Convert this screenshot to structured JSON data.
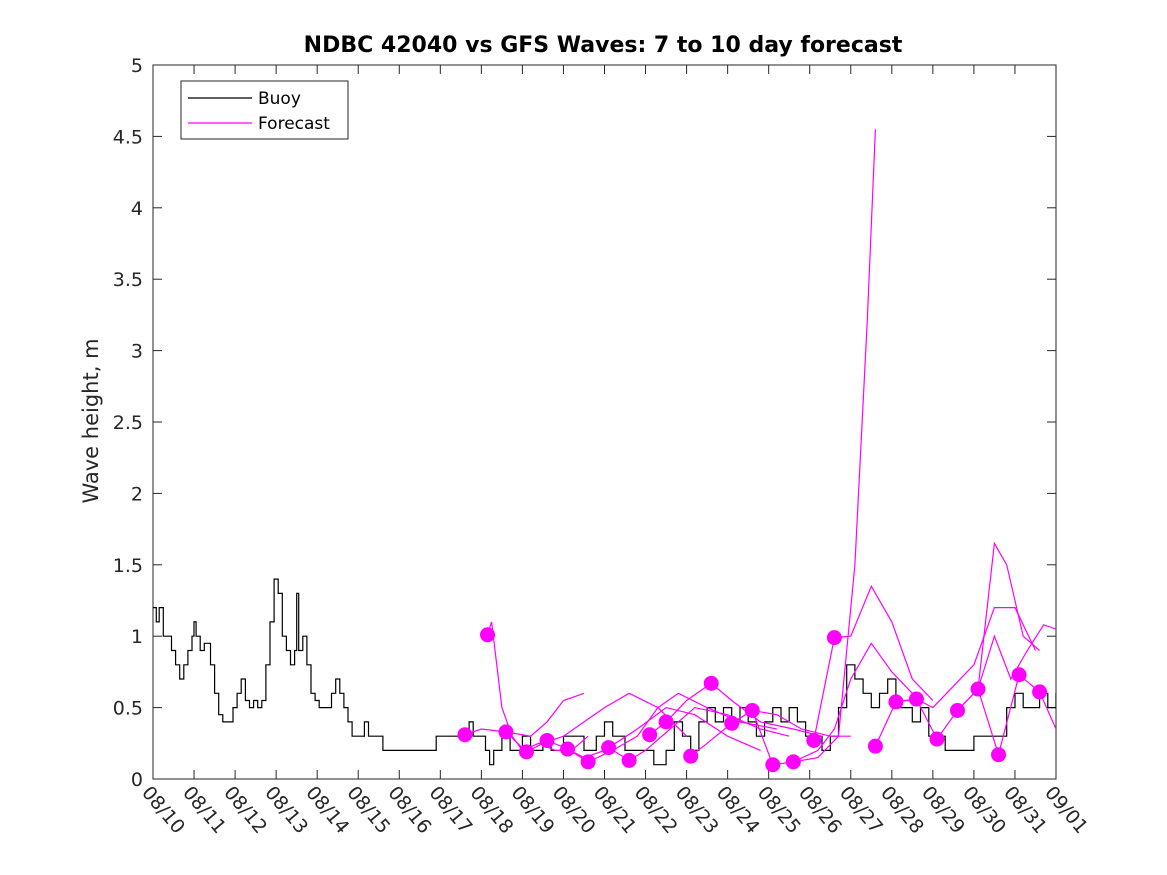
{
  "chart_data": {
    "type": "line",
    "title": "NDBC 42040 vs GFS Waves: 7 to 10 day forecast",
    "xlabel": "",
    "ylabel": "Wave height, m",
    "x_day_range": [
      0,
      22
    ],
    "ylim": [
      0,
      5
    ],
    "x_tick_labels": [
      "08/10",
      "08/11",
      "08/12",
      "08/13",
      "08/14",
      "08/15",
      "08/16",
      "08/17",
      "08/18",
      "08/19",
      "08/20",
      "08/21",
      "08/22",
      "08/23",
      "08/24",
      "08/25",
      "08/26",
      "08/27",
      "08/28",
      "08/29",
      "08/30",
      "08/31",
      "09/01"
    ],
    "y_ticks": [
      0,
      0.5,
      1,
      1.5,
      2,
      2.5,
      3,
      3.5,
      4,
      4.5,
      5
    ],
    "y_tick_labels": [
      "0",
      "0.5",
      "1",
      "1.5",
      "2",
      "2.5",
      "3",
      "3.5",
      "4",
      "4.5",
      "5"
    ],
    "legend": {
      "location": "top-left",
      "entries": [
        {
          "label": "Buoy",
          "color": "#000000"
        },
        {
          "label": "Forecast",
          "color": "#ff00ff"
        }
      ]
    },
    "series": [
      {
        "name": "Buoy",
        "color": "#000000",
        "points": [
          [
            0,
            1.2
          ],
          [
            0.08,
            1.1
          ],
          [
            0.15,
            1.2
          ],
          [
            0.25,
            1.0
          ],
          [
            0.35,
            1.0
          ],
          [
            0.45,
            0.9
          ],
          [
            0.55,
            0.8
          ],
          [
            0.65,
            0.7
          ],
          [
            0.75,
            0.8
          ],
          [
            0.85,
            0.9
          ],
          [
            0.95,
            1.0
          ],
          [
            1.0,
            1.1
          ],
          [
            1.05,
            1.0
          ],
          [
            1.15,
            0.9
          ],
          [
            1.25,
            0.95
          ],
          [
            1.4,
            0.8
          ],
          [
            1.5,
            0.6
          ],
          [
            1.6,
            0.45
          ],
          [
            1.7,
            0.4
          ],
          [
            1.85,
            0.4
          ],
          [
            1.95,
            0.5
          ],
          [
            2.05,
            0.6
          ],
          [
            2.15,
            0.7
          ],
          [
            2.25,
            0.55
          ],
          [
            2.35,
            0.5
          ],
          [
            2.45,
            0.55
          ],
          [
            2.55,
            0.5
          ],
          [
            2.65,
            0.55
          ],
          [
            2.75,
            0.8
          ],
          [
            2.85,
            1.1
          ],
          [
            2.95,
            1.4
          ],
          [
            3.05,
            1.3
          ],
          [
            3.15,
            1.0
          ],
          [
            3.25,
            0.9
          ],
          [
            3.35,
            0.8
          ],
          [
            3.45,
            0.9
          ],
          [
            3.5,
            1.3
          ],
          [
            3.55,
            0.9
          ],
          [
            3.65,
            1.0
          ],
          [
            3.75,
            0.8
          ],
          [
            3.85,
            0.6
          ],
          [
            3.95,
            0.55
          ],
          [
            4.05,
            0.5
          ],
          [
            4.25,
            0.5
          ],
          [
            4.35,
            0.6
          ],
          [
            4.45,
            0.7
          ],
          [
            4.55,
            0.6
          ],
          [
            4.65,
            0.5
          ],
          [
            4.75,
            0.4
          ],
          [
            4.85,
            0.3
          ],
          [
            5.0,
            0.3
          ],
          [
            5.15,
            0.4
          ],
          [
            5.25,
            0.3
          ],
          [
            5.5,
            0.3
          ],
          [
            5.6,
            0.2
          ],
          [
            6.0,
            0.2
          ],
          [
            6.5,
            0.2
          ],
          [
            6.9,
            0.3
          ],
          [
            7.3,
            0.3
          ],
          [
            7.6,
            0.3
          ],
          [
            7.7,
            0.4
          ],
          [
            7.8,
            0.3
          ],
          [
            8.0,
            0.3
          ],
          [
            8.1,
            0.2
          ],
          [
            8.2,
            0.1
          ],
          [
            8.3,
            0.2
          ],
          [
            8.5,
            0.3
          ],
          [
            8.7,
            0.2
          ],
          [
            9.0,
            0.3
          ],
          [
            9.2,
            0.2
          ],
          [
            9.5,
            0.3
          ],
          [
            9.7,
            0.2
          ],
          [
            10.0,
            0.3
          ],
          [
            10.3,
            0.3
          ],
          [
            10.5,
            0.2
          ],
          [
            10.8,
            0.3
          ],
          [
            11.0,
            0.4
          ],
          [
            11.2,
            0.3
          ],
          [
            11.5,
            0.2
          ],
          [
            11.8,
            0.2
          ],
          [
            12.0,
            0.2
          ],
          [
            12.2,
            0.1
          ],
          [
            12.5,
            0.2
          ],
          [
            12.7,
            0.4
          ],
          [
            12.9,
            0.3
          ],
          [
            13.1,
            0.2
          ],
          [
            13.3,
            0.4
          ],
          [
            13.5,
            0.5
          ],
          [
            13.7,
            0.4
          ],
          [
            13.9,
            0.5
          ],
          [
            14.1,
            0.4
          ],
          [
            14.3,
            0.5
          ],
          [
            14.5,
            0.4
          ],
          [
            14.7,
            0.3
          ],
          [
            14.9,
            0.4
          ],
          [
            15.1,
            0.5
          ],
          [
            15.3,
            0.4
          ],
          [
            15.5,
            0.5
          ],
          [
            15.7,
            0.4
          ],
          [
            15.9,
            0.3
          ],
          [
            16.1,
            0.3
          ],
          [
            16.3,
            0.2
          ],
          [
            16.5,
            0.3
          ],
          [
            16.7,
            0.5
          ],
          [
            16.9,
            0.8
          ],
          [
            17.1,
            0.7
          ],
          [
            17.3,
            0.6
          ],
          [
            17.5,
            0.5
          ],
          [
            17.7,
            0.6
          ],
          [
            17.9,
            0.7
          ],
          [
            18.1,
            0.5
          ],
          [
            18.3,
            0.5
          ],
          [
            18.5,
            0.4
          ],
          [
            18.7,
            0.5
          ],
          [
            18.9,
            0.3
          ],
          [
            19.1,
            0.3
          ],
          [
            19.3,
            0.2
          ],
          [
            19.5,
            0.2
          ],
          [
            19.8,
            0.2
          ],
          [
            20.0,
            0.3
          ],
          [
            20.2,
            0.3
          ],
          [
            20.4,
            0.3
          ],
          [
            20.6,
            0.3
          ],
          [
            20.8,
            0.5
          ],
          [
            21.0,
            0.6
          ],
          [
            21.2,
            0.5
          ],
          [
            21.4,
            0.5
          ],
          [
            21.6,
            0.6
          ],
          [
            21.8,
            0.5
          ],
          [
            22.0,
            0.6
          ]
        ]
      },
      {
        "name": "Forecast",
        "color": "#ff00ff",
        "runs": [
          [
            [
              8.15,
              1.01
            ],
            [
              8.25,
              1.1
            ],
            [
              8.5,
              0.5
            ],
            [
              8.75,
              0.3
            ],
            [
              9.0,
              0.2
            ],
            [
              9.4,
              0.25
            ],
            [
              9.8,
              0.2
            ],
            [
              10.2,
              0.2
            ],
            [
              10.6,
              0.3
            ]
          ],
          [
            [
              7.6,
              0.31
            ],
            [
              8.0,
              0.35
            ],
            [
              8.6,
              0.33
            ],
            [
              9.2,
              0.3
            ],
            [
              9.6,
              0.4
            ],
            [
              10.0,
              0.55
            ],
            [
              10.5,
              0.6
            ]
          ],
          [
            [
              8.6,
              0.33
            ],
            [
              9.1,
              0.19
            ],
            [
              9.5,
              0.25
            ],
            [
              10.0,
              0.3
            ],
            [
              10.5,
              0.4
            ],
            [
              11.0,
              0.5
            ],
            [
              11.6,
              0.6
            ],
            [
              12.3,
              0.5
            ],
            [
              13.0,
              0.3
            ]
          ],
          [
            [
              9.6,
              0.27
            ],
            [
              10.1,
              0.21
            ],
            [
              10.5,
              0.15
            ],
            [
              11.0,
              0.2
            ],
            [
              11.8,
              0.35
            ],
            [
              12.5,
              0.5
            ],
            [
              13.2,
              0.45
            ],
            [
              14.0,
              0.3
            ],
            [
              14.8,
              0.2
            ]
          ],
          [
            [
              10.1,
              0.21
            ],
            [
              10.6,
              0.12
            ],
            [
              11.2,
              0.2
            ],
            [
              11.8,
              0.3
            ],
            [
              12.3,
              0.5
            ],
            [
              12.8,
              0.6
            ],
            [
              13.5,
              0.5
            ],
            [
              14.3,
              0.4
            ],
            [
              15.2,
              0.35
            ]
          ],
          [
            [
              11.1,
              0.22
            ],
            [
              11.6,
              0.13
            ],
            [
              12.0,
              0.2
            ],
            [
              12.6,
              0.35
            ],
            [
              13.2,
              0.5
            ],
            [
              14.0,
              0.45
            ],
            [
              14.8,
              0.35
            ],
            [
              15.5,
              0.3
            ]
          ],
          [
            [
              12.1,
              0.31
            ],
            [
              12.5,
              0.4
            ],
            [
              13.0,
              0.55
            ],
            [
              13.6,
              0.67
            ],
            [
              14.1,
              0.55
            ],
            [
              14.8,
              0.4
            ],
            [
              15.6,
              0.35
            ],
            [
              16.3,
              0.3
            ]
          ],
          [
            [
              13.1,
              0.16
            ],
            [
              13.5,
              0.25
            ],
            [
              14.1,
              0.39
            ],
            [
              14.6,
              0.48
            ],
            [
              15.2,
              0.45
            ],
            [
              15.8,
              0.35
            ],
            [
              16.5,
              0.3
            ],
            [
              17.0,
              0.3
            ]
          ],
          [
            [
              14.6,
              0.48
            ],
            [
              15.1,
              0.1
            ],
            [
              15.6,
              0.12
            ],
            [
              16.2,
              0.2
            ],
            [
              16.6,
              0.35
            ],
            [
              17.0,
              0.7
            ],
            [
              17.5,
              0.95
            ],
            [
              18.0,
              0.75
            ],
            [
              18.5,
              0.6
            ]
          ],
          [
            [
              16.1,
              0.27
            ],
            [
              16.6,
              0.99
            ],
            [
              17.0,
              1.0
            ],
            [
              17.5,
              1.35
            ],
            [
              18.0,
              1.1
            ],
            [
              18.5,
              0.7
            ],
            [
              19.0,
              0.55
            ]
          ],
          [
            [
              15.6,
              0.12
            ],
            [
              16.2,
              0.15
            ],
            [
              16.7,
              0.3
            ],
            [
              17.1,
              1.5
            ],
            [
              17.4,
              3.2
            ],
            [
              17.6,
              4.55
            ]
          ],
          [
            [
              17.6,
              0.23
            ],
            [
              18.1,
              0.54
            ],
            [
              18.6,
              0.56
            ],
            [
              19.0,
              0.5
            ],
            [
              19.5,
              0.65
            ],
            [
              20.0,
              0.8
            ],
            [
              20.5,
              1.2
            ],
            [
              21.0,
              1.2
            ],
            [
              21.5,
              0.9
            ]
          ],
          [
            [
              18.1,
              0.54
            ],
            [
              18.6,
              0.56
            ],
            [
              19.1,
              0.28
            ],
            [
              19.6,
              0.48
            ],
            [
              20.1,
              0.63
            ],
            [
              20.5,
              1.65
            ],
            [
              20.8,
              1.5
            ],
            [
              21.2,
              1.0
            ],
            [
              21.6,
              0.9
            ]
          ],
          [
            [
              19.6,
              0.48
            ],
            [
              20.1,
              0.63
            ],
            [
              20.5,
              1.0
            ],
            [
              20.9,
              0.7
            ],
            [
              21.3,
              0.9
            ],
            [
              21.7,
              1.08
            ],
            [
              22.0,
              1.05
            ]
          ],
          [
            [
              20.1,
              0.63
            ],
            [
              20.6,
              0.17
            ],
            [
              21.1,
              0.73
            ],
            [
              21.6,
              0.61
            ],
            [
              22.0,
              0.35
            ]
          ]
        ]
      }
    ],
    "forecast_markers": [
      [
        7.6,
        0.31
      ],
      [
        8.15,
        1.01
      ],
      [
        8.6,
        0.33
      ],
      [
        9.1,
        0.19
      ],
      [
        9.6,
        0.27
      ],
      [
        10.1,
        0.21
      ],
      [
        10.6,
        0.12
      ],
      [
        11.1,
        0.22
      ],
      [
        11.6,
        0.13
      ],
      [
        12.1,
        0.31
      ],
      [
        12.5,
        0.4
      ],
      [
        13.1,
        0.16
      ],
      [
        13.6,
        0.67
      ],
      [
        14.1,
        0.39
      ],
      [
        14.6,
        0.48
      ],
      [
        15.1,
        0.1
      ],
      [
        15.6,
        0.12
      ],
      [
        16.1,
        0.27
      ],
      [
        16.6,
        0.99
      ],
      [
        17.6,
        0.23
      ],
      [
        18.1,
        0.54
      ],
      [
        18.6,
        0.56
      ],
      [
        19.1,
        0.28
      ],
      [
        19.6,
        0.48
      ],
      [
        20.1,
        0.63
      ],
      [
        20.6,
        0.17
      ],
      [
        21.1,
        0.73
      ],
      [
        21.6,
        0.61
      ]
    ]
  }
}
